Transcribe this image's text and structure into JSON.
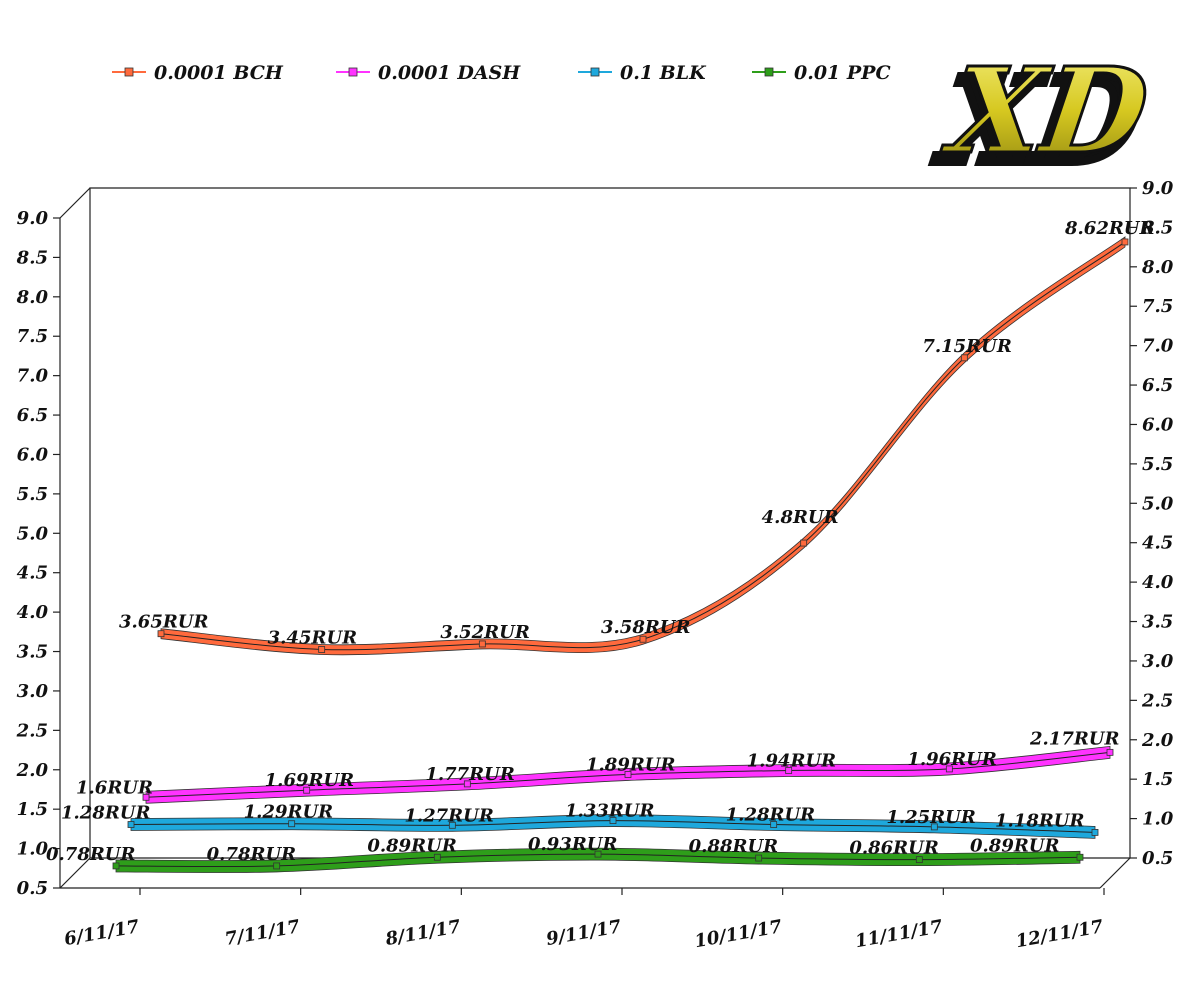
{
  "chart_data": {
    "type": "line",
    "title": "",
    "xlabel": "",
    "ylabel": "",
    "categories": [
      "6/11/17",
      "7/11/17",
      "8/11/17",
      "9/11/17",
      "10/11/17",
      "11/11/17",
      "12/11/17"
    ],
    "ylim_left": [
      0.5,
      9.0
    ],
    "ylim_right": [
      0.5,
      9.0
    ],
    "y_ticks": [
      "0.5",
      "1.0",
      "1.5",
      "2.0",
      "2.5",
      "3.0",
      "3.5",
      "4.0",
      "4.5",
      "5.0",
      "5.5",
      "6.0",
      "6.5",
      "7.0",
      "7.5",
      "8.0",
      "8.5",
      "9.0"
    ],
    "label_suffix": "RUR",
    "legend_position": "top-left",
    "grid": false,
    "series": [
      {
        "name": "0.0001 BCH",
        "color": "#ff6a3d",
        "values": [
          3.65,
          3.45,
          3.52,
          3.58,
          4.8,
          7.15,
          8.62
        ],
        "labels": [
          "3.65RUR",
          "3.45RUR",
          "3.52RUR",
          "3.58RUR",
          "4.8RUR",
          "7.15RUR",
          "8.62RUR"
        ]
      },
      {
        "name": "0.0001 DASH",
        "color": "#ff33ff",
        "values": [
          1.6,
          1.69,
          1.77,
          1.89,
          1.94,
          1.96,
          2.17
        ],
        "labels": [
          "1.6RUR",
          "1.69RUR",
          "1.77RUR",
          "1.89RUR",
          "1.94RUR",
          "1.96RUR",
          "2.17RUR"
        ]
      },
      {
        "name": "0.1 BLK",
        "color": "#1ea8dc",
        "values": [
          1.28,
          1.29,
          1.27,
          1.33,
          1.28,
          1.25,
          1.18
        ],
        "labels": [
          "1.28RUR",
          "1.29RUR",
          "1.27RUR",
          "1.33RUR",
          "1.28RUR",
          "1.25RUR",
          "1.18RUR"
        ]
      },
      {
        "name": "0.01 PPC",
        "color": "#2e9e1a",
        "values": [
          0.78,
          0.78,
          0.89,
          0.93,
          0.88,
          0.86,
          0.89
        ],
        "labels": [
          "0.78RUR",
          "0.78RUR",
          "0.89RUR",
          "0.93RUR",
          "0.88RUR",
          "0.86RUR",
          "0.89RUR"
        ]
      }
    ]
  },
  "logo": {
    "text": "XD",
    "fill": "#d8cc2a",
    "outline": "#111111"
  }
}
